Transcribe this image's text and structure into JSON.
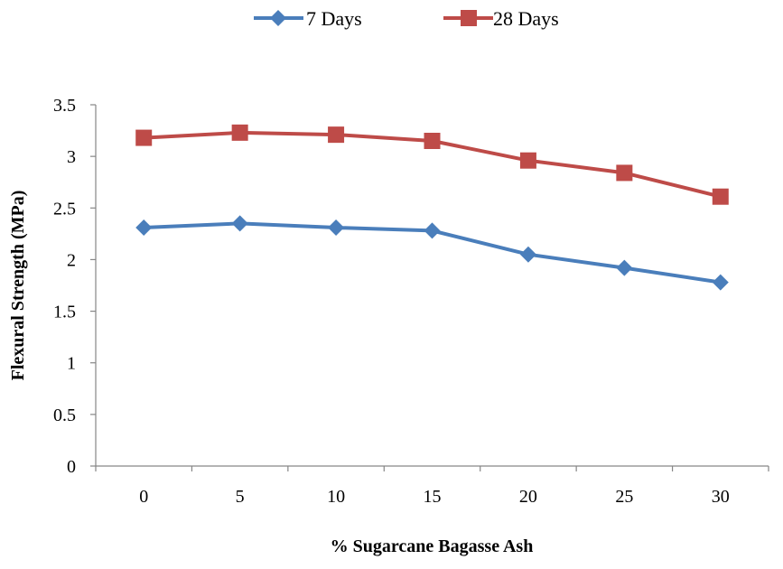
{
  "chart_data": {
    "type": "line",
    "title": "",
    "xlabel": "% Sugarcane Bagasse Ash",
    "ylabel": "Flexural Strength (MPa)",
    "categories": [
      "0",
      "5",
      "10",
      "15",
      "20",
      "25",
      "30"
    ],
    "y_ticks": [
      "0",
      "0.5",
      "1",
      "1.5",
      "2",
      "2.5",
      "3",
      "3.5"
    ],
    "ylim": [
      0,
      3.5
    ],
    "grid": false,
    "legend_position": "top",
    "series": [
      {
        "name": "7 Days",
        "color": "#4a7ebb",
        "marker": "diamond",
        "values": [
          2.31,
          2.35,
          2.31,
          2.28,
          2.05,
          1.92,
          1.78
        ]
      },
      {
        "name": "28 Days",
        "color": "#be4b48",
        "marker": "square",
        "values": [
          3.18,
          3.23,
          3.21,
          3.15,
          2.96,
          2.84,
          2.61
        ]
      }
    ]
  }
}
